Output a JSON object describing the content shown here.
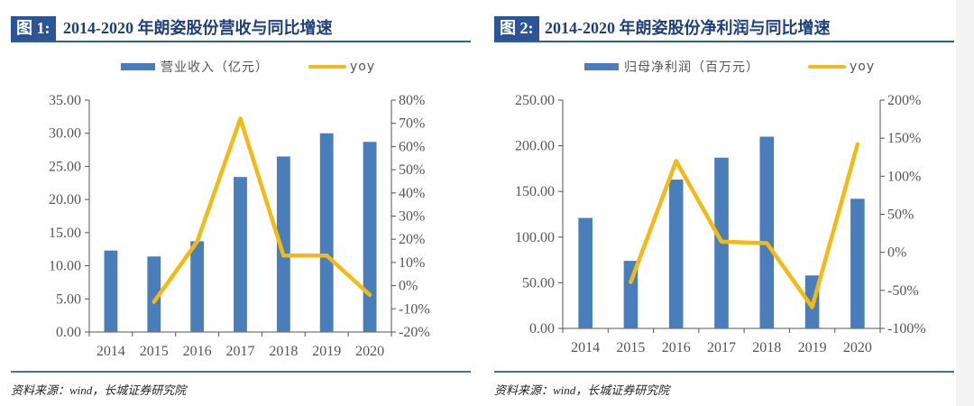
{
  "figures": [
    {
      "label": "图 1:",
      "title": "2014-2020 年朗姿股份营收与同比增速",
      "legend": {
        "bar": "营业收入（亿元）",
        "line": "yoy"
      },
      "source": "资料来源：wind，长城证券研究院"
    },
    {
      "label": "图 2:",
      "title": "2014-2020 年朗姿股份净利润与同比增速",
      "legend": {
        "bar": "归母净利润（百万元）",
        "line": "yoy"
      },
      "source": "资料来源：wind，长城证券研究院"
    }
  ],
  "colors": {
    "bar": "#4a7ebb",
    "line": "#f5b914",
    "title_band": "#2c5597",
    "title_text": "#1f3f7a"
  },
  "chart_data": [
    {
      "type": "bar",
      "title": "2014-2020 年朗姿股份营收与同比增速",
      "categories": [
        "2014",
        "2015",
        "2016",
        "2017",
        "2018",
        "2019",
        "2020"
      ],
      "series": [
        {
          "name": "营业收入（亿元）",
          "type": "bar",
          "axis": "left",
          "values": [
            12.3,
            11.4,
            13.7,
            23.4,
            26.5,
            30.0,
            28.7
          ]
        },
        {
          "name": "yoy",
          "type": "line",
          "axis": "right",
          "values": [
            null,
            -7,
            19,
            72,
            13,
            13,
            -4
          ]
        }
      ],
      "left_axis": {
        "range": [
          0,
          35
        ],
        "step": 5,
        "ticks": [
          "0.00",
          "5.00",
          "10.00",
          "15.00",
          "20.00",
          "25.00",
          "30.00",
          "35.00"
        ]
      },
      "right_axis": {
        "range": [
          -20,
          80
        ],
        "step": 10,
        "ticks": [
          "-20%",
          "-10%",
          "0%",
          "10%",
          "20%",
          "30%",
          "40%",
          "50%",
          "60%",
          "70%",
          "80%"
        ]
      },
      "xlabel": "",
      "ylabel": "",
      "grid": false,
      "legend_position": "top-center"
    },
    {
      "type": "bar",
      "title": "2014-2020 年朗姿股份净利润与同比增速",
      "categories": [
        "2014",
        "2015",
        "2016",
        "2017",
        "2018",
        "2019",
        "2020"
      ],
      "series": [
        {
          "name": "归母净利润（百万元）",
          "type": "bar",
          "axis": "left",
          "values": [
            121,
            74,
            163,
            187,
            210,
            58,
            142
          ]
        },
        {
          "name": "yoy",
          "type": "line",
          "axis": "right",
          "values": [
            null,
            -39,
            120,
            14,
            12,
            -72,
            142
          ]
        }
      ],
      "left_axis": {
        "range": [
          0,
          250
        ],
        "step": 50,
        "ticks": [
          "0.00",
          "50.00",
          "100.00",
          "150.00",
          "200.00",
          "250.00"
        ]
      },
      "right_axis": {
        "range": [
          -100,
          200
        ],
        "step": 50,
        "ticks": [
          "-100%",
          "-50%",
          "0%",
          "50%",
          "100%",
          "150%",
          "200%"
        ]
      },
      "xlabel": "",
      "ylabel": "",
      "grid": false,
      "legend_position": "top-center"
    }
  ]
}
